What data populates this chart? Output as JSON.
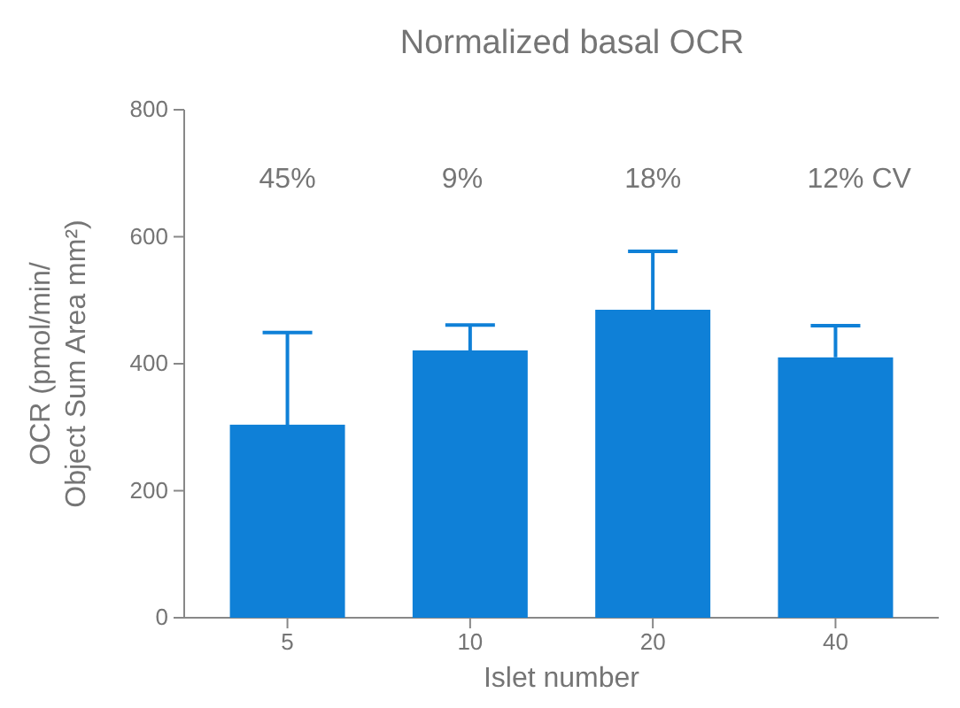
{
  "chart_data": {
    "type": "bar",
    "title": "Normalized basal OCR",
    "xlabel": "Islet number",
    "ylabel": "OCR (pmol/min/\nObject Sum Area mm²)",
    "categories": [
      "5",
      "10",
      "20",
      "40"
    ],
    "values": [
      304,
      421,
      485,
      410
    ],
    "errors": [
      [
        304,
        449
      ],
      [
        421,
        461
      ],
      [
        485,
        577
      ],
      [
        410,
        460
      ]
    ],
    "color": "#0f80d7",
    "ylim": [
      0,
      800
    ],
    "yticks": [
      0,
      200,
      400,
      600,
      800
    ],
    "grid": false,
    "annotations": [
      "45%",
      "9%",
      "18%",
      "12%  CV"
    ]
  }
}
